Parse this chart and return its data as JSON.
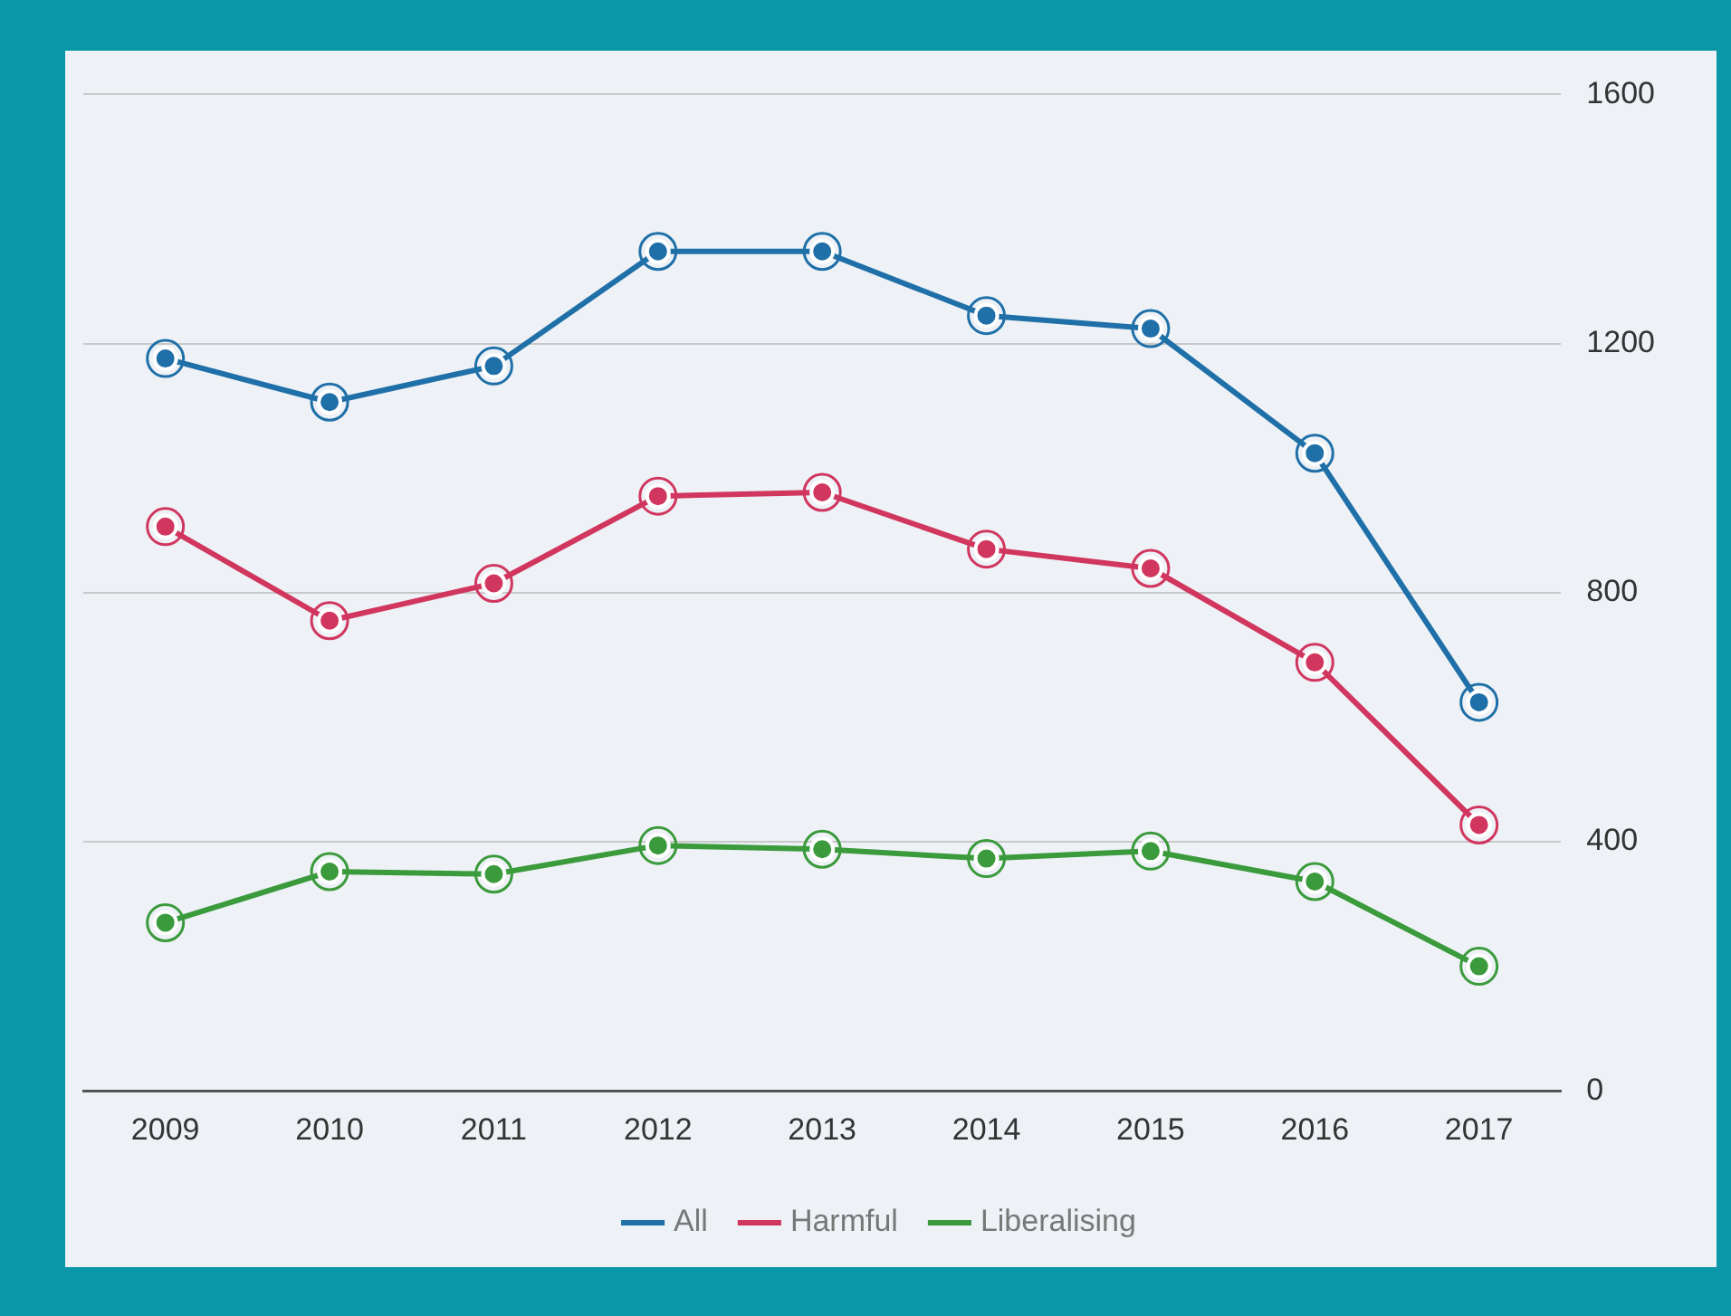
{
  "chart_data": {
    "type": "line",
    "categories": [
      "2009",
      "2010",
      "2011",
      "2012",
      "2013",
      "2014",
      "2015",
      "2016",
      "2017"
    ],
    "series": [
      {
        "name": "All",
        "color": "#1f6fa8",
        "values": [
          1176,
          1106,
          1164,
          1348,
          1348,
          1245,
          1224,
          1024,
          624
        ]
      },
      {
        "name": "Harmful",
        "color": "#d1365f",
        "values": [
          906,
          755,
          815,
          955,
          961,
          870,
          839,
          688,
          427
        ]
      },
      {
        "name": "Liberalising",
        "color": "#3a9a3c",
        "values": [
          270,
          352,
          348,
          394,
          388,
          373,
          385,
          336,
          200
        ]
      }
    ],
    "ylim": [
      0,
      1600
    ],
    "yticks": [
      0,
      400,
      800,
      1200,
      1600
    ],
    "grid": "y",
    "legend": "bottom",
    "marker": "circle",
    "line_style": "solid"
  }
}
